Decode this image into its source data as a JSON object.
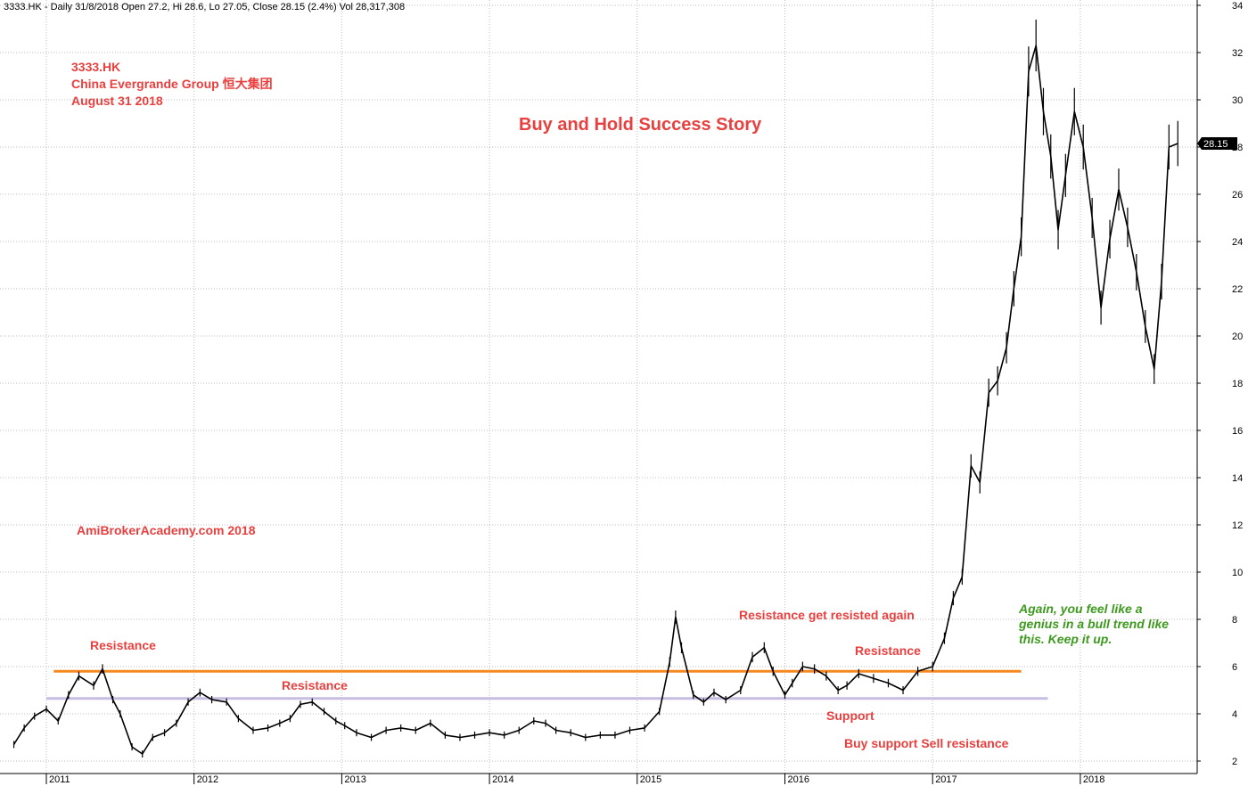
{
  "chart_data": {
    "type": "line",
    "style": "ohlc",
    "ticker": "3333.HK",
    "header": "3333.HK - Daily 31/8/2018 Open 27.2, Hi 28.6, Lo 27.05, Close 28.15 (2.4%) Vol 28,317,308",
    "info_lines": [
      "3333.HK",
      "China Evergrande Group 恒大集团",
      "August 31 2018"
    ],
    "title": "Buy and Hold Success Story",
    "watermark": "AmiBrokerAcademy.com  2018",
    "last_price_label": "28.15",
    "last_price": 28.15,
    "ylim": [
      2,
      34
    ],
    "yticks": [
      2,
      4,
      6,
      8,
      10,
      12,
      14,
      16,
      18,
      20,
      22,
      24,
      26,
      28,
      30,
      32,
      34
    ],
    "xlim": [
      2010.78,
      2018.72
    ],
    "xticks": [
      {
        "label": "2011",
        "x": 2011.0
      },
      {
        "label": "2012",
        "x": 2012.0
      },
      {
        "label": "2013",
        "x": 2013.0
      },
      {
        "label": "2014",
        "x": 2014.0
      },
      {
        "label": "2015",
        "x": 2015.0
      },
      {
        "label": "2016",
        "x": 2016.0
      },
      {
        "label": "2017",
        "x": 2017.0
      },
      {
        "label": "2018",
        "x": 2018.0
      }
    ],
    "grid": true,
    "x": [
      2010.78,
      2010.85,
      2010.92,
      2011.0,
      2011.08,
      2011.15,
      2011.22,
      2011.32,
      2011.38,
      2011.45,
      2011.5,
      2011.58,
      2011.65,
      2011.72,
      2011.8,
      2011.88,
      2011.96,
      2012.04,
      2012.12,
      2012.22,
      2012.3,
      2012.4,
      2012.5,
      2012.58,
      2012.65,
      2012.72,
      2012.8,
      2012.88,
      2012.96,
      2013.02,
      2013.1,
      2013.2,
      2013.3,
      2013.4,
      2013.5,
      2013.6,
      2013.7,
      2013.8,
      2013.9,
      2014.0,
      2014.1,
      2014.2,
      2014.3,
      2014.38,
      2014.45,
      2014.55,
      2014.65,
      2014.75,
      2014.85,
      2014.95,
      2015.05,
      2015.15,
      2015.22,
      2015.26,
      2015.3,
      2015.38,
      2015.45,
      2015.52,
      2015.6,
      2015.7,
      2015.78,
      2015.86,
      2015.92,
      2016.0,
      2016.05,
      2016.12,
      2016.2,
      2016.28,
      2016.36,
      2016.42,
      2016.5,
      2016.6,
      2016.7,
      2016.8,
      2016.9,
      2017.0,
      2017.08,
      2017.14,
      2017.2,
      2017.26,
      2017.32,
      2017.38,
      2017.44,
      2017.5,
      2017.55,
      2017.6,
      2017.65,
      2017.7,
      2017.75,
      2017.8,
      2017.85,
      2017.9,
      2017.96,
      2018.02,
      2018.08,
      2018.14,
      2018.2,
      2018.26,
      2018.32,
      2018.38,
      2018.44,
      2018.5,
      2018.55,
      2018.6,
      2018.66
    ],
    "y": [
      2.7,
      3.4,
      3.9,
      4.2,
      3.7,
      4.8,
      5.6,
      5.2,
      5.9,
      4.6,
      4.0,
      2.6,
      2.3,
      3.0,
      3.2,
      3.6,
      4.5,
      4.9,
      4.6,
      4.5,
      3.8,
      3.3,
      3.4,
      3.6,
      3.8,
      4.4,
      4.5,
      4.1,
      3.7,
      3.5,
      3.2,
      3.0,
      3.3,
      3.4,
      3.3,
      3.6,
      3.1,
      3.0,
      3.1,
      3.2,
      3.1,
      3.3,
      3.7,
      3.6,
      3.3,
      3.2,
      3.0,
      3.1,
      3.1,
      3.3,
      3.4,
      4.1,
      6.2,
      8.1,
      6.8,
      4.8,
      4.5,
      4.9,
      4.6,
      5.0,
      6.4,
      6.8,
      5.8,
      4.8,
      5.3,
      6.0,
      5.9,
      5.6,
      5.0,
      5.2,
      5.7,
      5.5,
      5.3,
      5.0,
      5.8,
      6.0,
      7.2,
      8.9,
      9.8,
      14.5,
      13.8,
      17.6,
      18.1,
      19.5,
      22.0,
      24.2,
      31.2,
      32.3,
      29.5,
      27.6,
      24.5,
      26.8,
      29.5,
      28.0,
      25.0,
      21.2,
      24.1,
      26.2,
      24.6,
      22.7,
      20.4,
      18.6,
      22.3,
      28.0,
      28.15
    ],
    "levels": [
      {
        "name": "Resistance",
        "value": 5.8,
        "from": 2011.05,
        "to": 2017.6,
        "color": "#f5891f"
      },
      {
        "name": "Support",
        "value": 4.65,
        "from": 2011.0,
        "to": 2017.78,
        "color": "#c7bde0"
      }
    ],
    "annotations": [
      {
        "text": "Resistance"
      },
      {
        "text": "Resistance"
      },
      {
        "text": "Resistance get resisted again"
      },
      {
        "text": "Resistance"
      },
      {
        "text": "Support"
      },
      {
        "text": "Buy support Sell resistance"
      }
    ],
    "note_lines": [
      "Again, you feel like a",
      "genius in a bull trend like",
      "this. Keep it up."
    ],
    "colors": {
      "price": "#000000",
      "annotation": "#e8403f",
      "note": "#3d9a1e",
      "resistance": "#f5891f",
      "support": "#c7bde0"
    }
  }
}
